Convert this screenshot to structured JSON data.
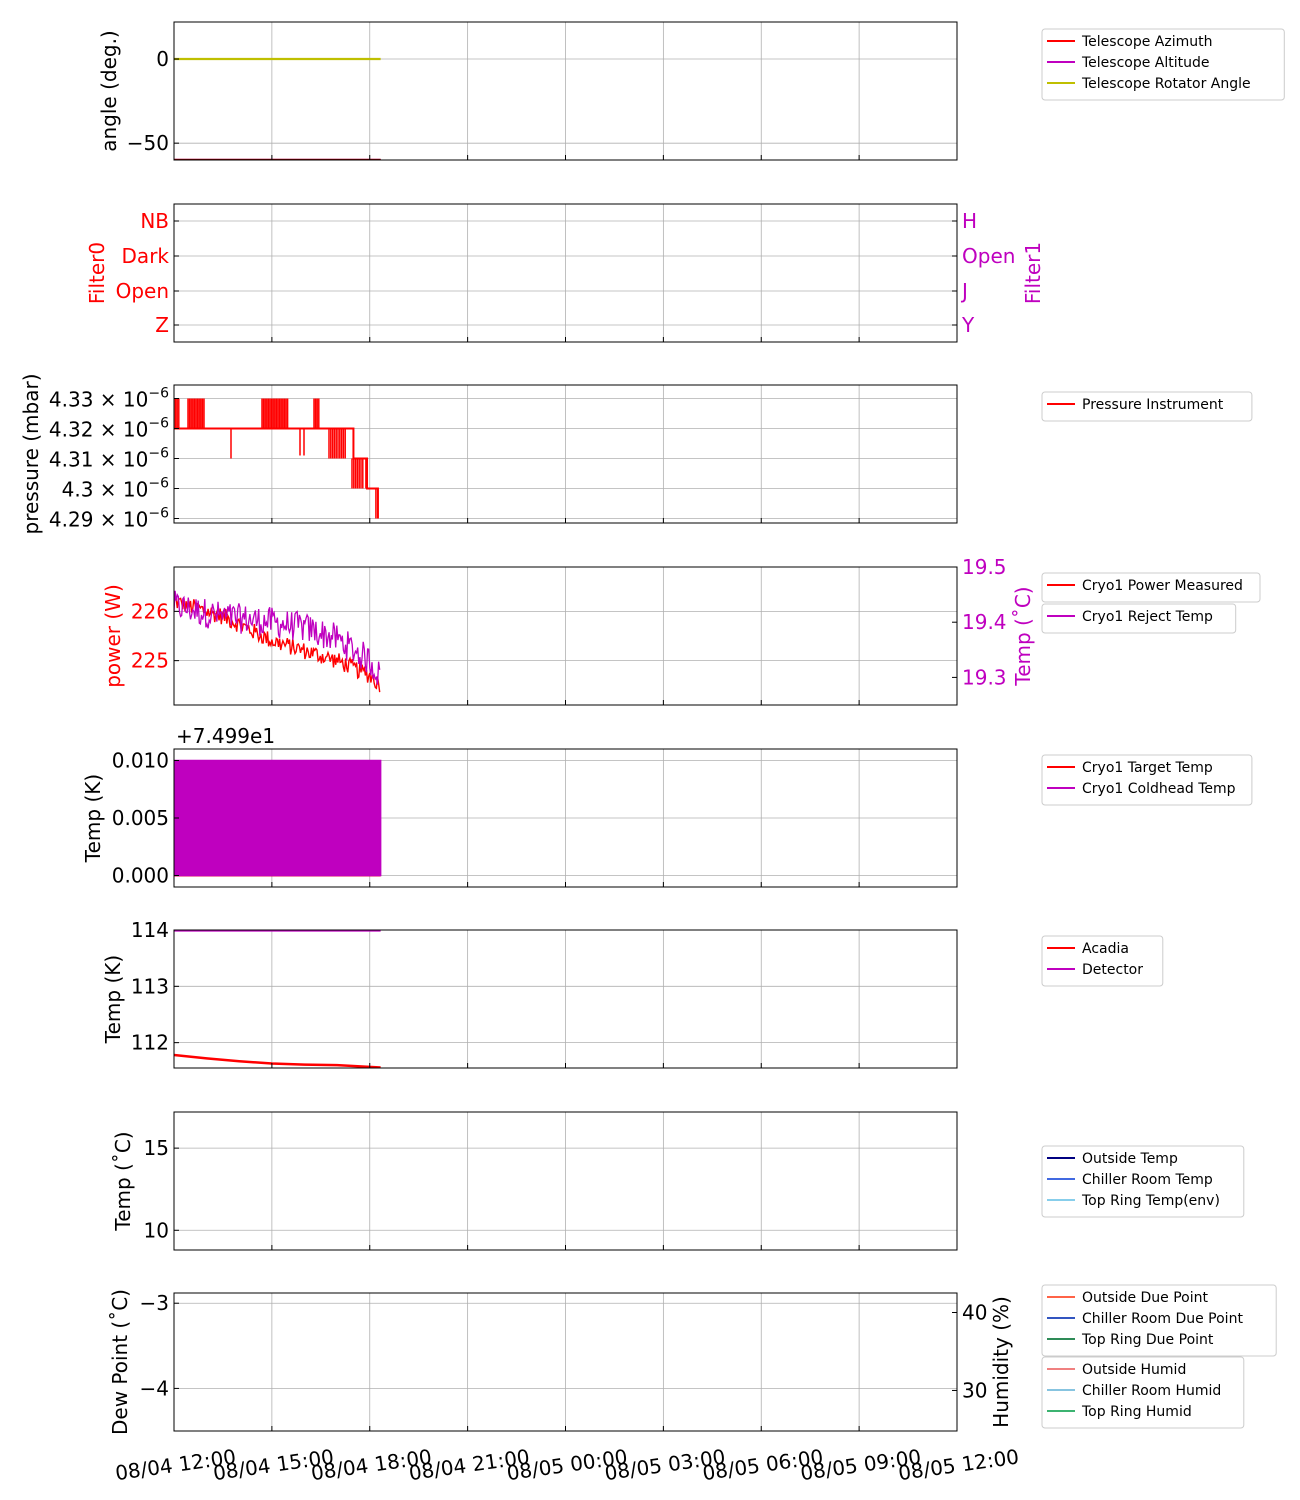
{
  "colors": {
    "red": "#ff0000",
    "magenta": "#bf00bf",
    "olive": "#bfbf00",
    "navy": "#000080",
    "royalblue": "#4169e1",
    "skyblue": "#87ceeb",
    "tomato": "#ff6347",
    "royalblue_dark": "#3255c0",
    "seagreen": "#2e8b57",
    "lightcoral": "#f08080",
    "lightblue": "#87c4e0",
    "mediumseagreen": "#3cb371",
    "grid": "#b0b0b0"
  },
  "time_ticks": [
    "08/04 12:00",
    "08/04 15:00",
    "08/04 18:00",
    "08/04 21:00",
    "08/05 00:00",
    "08/05 03:00",
    "08/05 06:00",
    "08/05 09:00",
    "08/05 12:00"
  ],
  "chart_data": [
    {
      "id": "telescope",
      "type": "line",
      "ylabel": "angle (deg.)",
      "ylim": [
        -60,
        22
      ],
      "yticks": [
        {
          "v": 0,
          "label": "0"
        },
        {
          "v": -50,
          "label": "−50"
        }
      ],
      "series": [
        {
          "name": "Telescope Azimuth",
          "color": "red",
          "x": [
            "08/04 12:00",
            "08/04 18:20"
          ],
          "y": [
            -60,
            -60
          ]
        },
        {
          "name": "Telescope Altitude",
          "color": "magenta",
          "x": [
            "08/04 12:00",
            "08/04 18:20"
          ],
          "y": [
            -60,
            -60
          ]
        },
        {
          "name": "Telescope Rotator Angle",
          "color": "olive",
          "x": [
            "08/04 12:00",
            "08/04 18:20"
          ],
          "y": [
            0,
            0
          ]
        }
      ],
      "legend": [
        "Telescope Azimuth",
        "Telescope Altitude",
        "Telescope Rotator Angle"
      ],
      "grid": true
    },
    {
      "id": "filters",
      "type": "line",
      "ylabel": "Filter0",
      "ylabel_right": "Filter1",
      "yticks_left": [
        "NB",
        "Dark",
        "Open",
        "Z"
      ],
      "yticks_right": [
        "H",
        "Open",
        "J",
        "Y"
      ],
      "series": [],
      "grid": true
    },
    {
      "id": "pressure",
      "type": "line",
      "ylabel": "pressure (mbar)",
      "ylim": [
        4.2885,
        4.3345
      ],
      "ytick_mantissas": [
        "4.33",
        "4.32",
        "4.31",
        "4.3",
        "4.29"
      ],
      "ytick_values": [
        4.33,
        4.32,
        4.31,
        4.3,
        4.29
      ],
      "ytick_multiplier": "× 10",
      "ytick_exponent": "−6",
      "series": [
        {
          "name": "Pressure Instrument",
          "color": "red",
          "x": [
            "08/04 12:00",
            "08/04 14:00",
            "08/04 15:30",
            "08/04 16:50",
            "08/04 17:30",
            "08/04 17:55",
            "08/04 18:15"
          ],
          "y": [
            4.32,
            4.32,
            4.32,
            4.32,
            4.31,
            4.3,
            4.29
          ]
        }
      ],
      "legend": [
        "Pressure Instrument"
      ],
      "grid": true
    },
    {
      "id": "cryo_power",
      "type": "line",
      "ylabel": "power (W)",
      "ylabel_right": "Temp (˚C)",
      "ylim": [
        224.1,
        226.9
      ],
      "ylim_right": [
        19.25,
        19.5
      ],
      "yticks": [
        {
          "v": 226,
          "label": "226"
        },
        {
          "v": 225,
          "label": "225"
        }
      ],
      "yticks_right": [
        {
          "v": 19.5,
          "label": "19.5"
        },
        {
          "v": 19.4,
          "label": "19.4"
        },
        {
          "v": 19.3,
          "label": "19.3"
        }
      ],
      "series": [
        {
          "name": "Cryo1 Power Measured",
          "color": "red",
          "x": [
            "08/04 12:00",
            "08/04 13:30",
            "08/04 15:00",
            "08/04 16:00",
            "08/04 17:00",
            "08/04 18:00",
            "08/04 18:20"
          ],
          "y": [
            226.2,
            225.9,
            225.4,
            225.2,
            225.0,
            224.7,
            224.5
          ]
        },
        {
          "name": "Cryo1 Reject Temp",
          "color": "magenta",
          "x": [
            "08/04 12:00",
            "08/04 13:30",
            "08/04 15:00",
            "08/04 16:00",
            "08/04 17:00",
            "08/04 18:00",
            "08/04 18:20"
          ],
          "y": [
            19.43,
            19.41,
            19.4,
            19.39,
            19.37,
            19.33,
            19.3
          ]
        }
      ],
      "legend": [
        "Cryo1 Power Measured",
        "Cryo1 Reject Temp"
      ],
      "grid": true
    },
    {
      "id": "cryo_temp",
      "type": "line",
      "ylabel": "Temp (K)",
      "offset_text": "+7.499e1",
      "ylim": [
        -0.001,
        0.011
      ],
      "yticks": [
        {
          "v": 0.01,
          "label": "0.010"
        },
        {
          "v": 0.005,
          "label": "0.005"
        },
        {
          "v": 0.0,
          "label": "0.000"
        }
      ],
      "series": [
        {
          "name": "Cryo1 Target Temp",
          "color": "red",
          "x": [
            "08/04 12:00",
            "08/04 18:20"
          ],
          "y": [
            0.0,
            0.0
          ]
        },
        {
          "name": "Cryo1 Coldhead Temp",
          "color": "magenta",
          "x": [
            "08/04 12:00",
            "08/04 18:20"
          ],
          "y_min": 0.0,
          "y_max": 0.01
        }
      ],
      "legend": [
        "Cryo1 Target Temp",
        "Cryo1 Coldhead Temp"
      ],
      "grid": true
    },
    {
      "id": "detector",
      "type": "line",
      "ylabel": "Temp (K)",
      "ylim": [
        111.55,
        114.0
      ],
      "yticks": [
        {
          "v": 114,
          "label": "114"
        },
        {
          "v": 113,
          "label": "113"
        },
        {
          "v": 112,
          "label": "112"
        }
      ],
      "series": [
        {
          "name": "Acadia",
          "color": "red",
          "x": [
            "08/04 12:00",
            "08/04 13:00",
            "08/04 14:00",
            "08/04 15:00",
            "08/04 16:00",
            "08/04 17:00",
            "08/04 18:20"
          ],
          "y": [
            111.78,
            111.72,
            111.67,
            111.63,
            111.61,
            111.6,
            111.56
          ]
        },
        {
          "name": "Detector",
          "color": "magenta",
          "x": [
            "08/04 12:00",
            "08/04 18:20"
          ],
          "y": [
            114.0,
            114.0
          ]
        }
      ],
      "legend": [
        "Acadia",
        "Detector"
      ],
      "grid": true
    },
    {
      "id": "env_temp",
      "type": "line",
      "ylabel": "Temp (˚C)",
      "ylim": [
        8.8,
        17.2
      ],
      "yticks": [
        {
          "v": 15,
          "label": "15"
        },
        {
          "v": 10,
          "label": "10"
        }
      ],
      "series": [],
      "legend": [
        {
          "name": "Outside Temp",
          "color": "navy"
        },
        {
          "name": "Chiller Room Temp",
          "color": "royalblue"
        },
        {
          "name": "Top Ring Temp(env)",
          "color": "skyblue"
        }
      ],
      "grid": true
    },
    {
      "id": "dew",
      "type": "line",
      "ylabel": "Dew Point (˚C)",
      "ylabel_right": "Humidity (%)",
      "ylim": [
        -4.5,
        -2.88
      ],
      "ylim_right": [
        24.8,
        42.5
      ],
      "yticks": [
        {
          "v": -3,
          "label": "−3"
        },
        {
          "v": -4,
          "label": "−4"
        }
      ],
      "yticks_right": [
        {
          "v": 40,
          "label": "40"
        },
        {
          "v": 30,
          "label": "30"
        }
      ],
      "series": [],
      "legend": [
        {
          "name": "Outside Due Point",
          "color": "tomato"
        },
        {
          "name": "Chiller Room Due Point",
          "color": "royalblue_dark"
        },
        {
          "name": "Top Ring Due Point",
          "color": "seagreen"
        }
      ],
      "legend2": [
        {
          "name": "Outside Humid",
          "color": "lightcoral"
        },
        {
          "name": "Chiller Room Humid",
          "color": "lightblue"
        },
        {
          "name": "Top Ring Humid",
          "color": "mediumseagreen"
        }
      ],
      "grid": true
    }
  ]
}
